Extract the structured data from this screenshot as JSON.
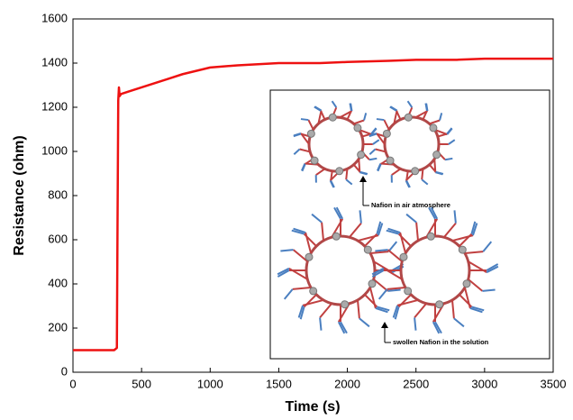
{
  "chart_data": {
    "type": "line",
    "x_label": "Time (s)",
    "y_label": "Resistance (ohm)",
    "x": [
      0,
      100,
      200,
      300,
      310,
      320,
      325,
      330,
      335,
      340,
      350,
      400,
      500,
      600,
      700,
      800,
      1000,
      1200,
      1500,
      1800,
      2000,
      2300,
      2500,
      2800,
      3000,
      3200,
      3500
    ],
    "series": [
      {
        "color": "#ee1111",
        "values": [
          100,
          100,
          100,
          100,
          105,
          110,
          700,
          1230,
          1290,
          1250,
          1260,
          1270,
          1290,
          1310,
          1330,
          1350,
          1380,
          1390,
          1400,
          1400,
          1405,
          1410,
          1415,
          1415,
          1420,
          1420,
          1420
        ]
      }
    ],
    "xlim": [
      0,
      3500
    ],
    "xticks": [
      0,
      500,
      1000,
      1500,
      2000,
      2500,
      3000,
      3500
    ],
    "ylim": [
      0,
      1600
    ],
    "yticks": [
      0,
      200,
      400,
      600,
      800,
      1000,
      1200,
      1400,
      1600
    ],
    "annotations": [
      "Nafion in air atmosphere",
      "swollen Nafion in the solution"
    ]
  }
}
